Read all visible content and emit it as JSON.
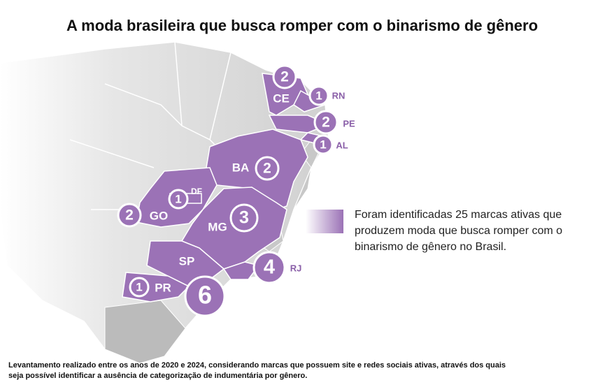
{
  "title": "A moda brasileira que busca romper com o binarismo de gênero",
  "states": [
    {
      "code": "CE",
      "count": 2
    },
    {
      "code": "RN",
      "count": 1
    },
    {
      "code": "PE",
      "count": 2
    },
    {
      "code": "AL",
      "count": 1
    },
    {
      "code": "BA",
      "count": 2
    },
    {
      "code": "DF",
      "count": 1
    },
    {
      "code": "GO",
      "count": 2
    },
    {
      "code": "MG",
      "count": 3
    },
    {
      "code": "SP",
      "count": 6
    },
    {
      "code": "RJ",
      "count": 4
    },
    {
      "code": "PR",
      "count": 1
    }
  ],
  "legend": {
    "lines": [
      "Foram identificadas 25 marcas ativas que",
      "produzem moda que busca romper com o",
      "binarismo de gênero no Brasil."
    ]
  },
  "footnote": {
    "lines": [
      "Levantamento realizado entre os anos de 2020 e 2024, considerando marcas que possuem site e redes sociais ativas, através dos quais",
      "seja possível identificar a ausência de categorização de indumentária por gênero."
    ]
  }
}
